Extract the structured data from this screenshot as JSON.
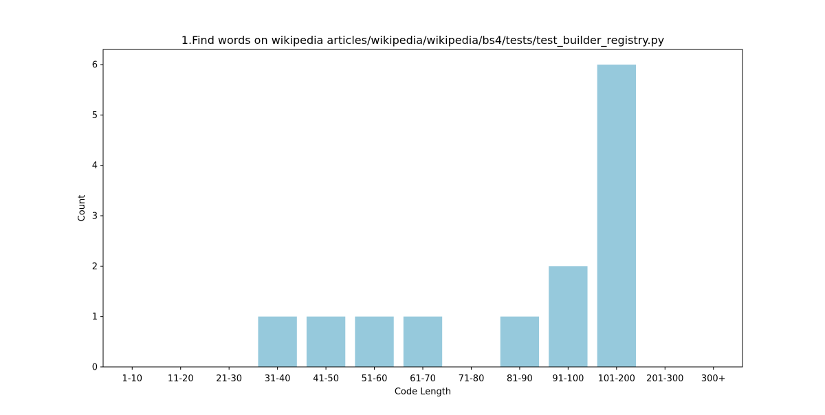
{
  "chart_data": {
    "type": "bar",
    "title": "1.Find words on wikipedia articles/wikipedia/wikipedia/bs4/tests/test_builder_registry.py",
    "xlabel": "Code Length",
    "ylabel": "Count",
    "categories": [
      "1-10",
      "11-20",
      "21-30",
      "31-40",
      "41-50",
      "51-60",
      "61-70",
      "71-80",
      "81-90",
      "91-100",
      "101-200",
      "201-300",
      "300+"
    ],
    "values": [
      0,
      0,
      0,
      1,
      1,
      1,
      1,
      0,
      1,
      2,
      6,
      0,
      0
    ],
    "ylim": [
      0,
      6.3
    ],
    "yticks": [
      0,
      1,
      2,
      3,
      4,
      5,
      6
    ],
    "grid": false,
    "legend": "none",
    "bar_color": "#96c9dc"
  }
}
